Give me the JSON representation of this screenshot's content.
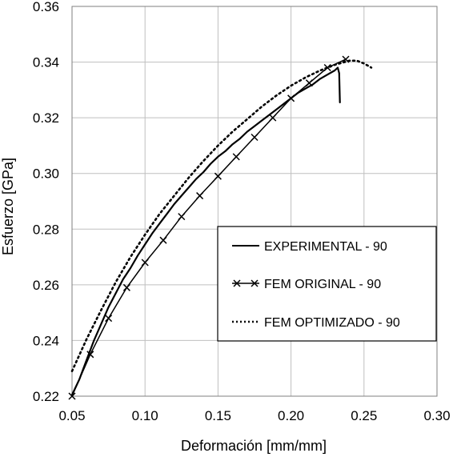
{
  "chart_data": {
    "type": "line",
    "title": "",
    "xlabel": "Deformación [mm/mm]",
    "ylabel": "Esfuerzo [GPa]",
    "xlim": [
      0.05,
      0.3
    ],
    "ylim": [
      0.22,
      0.36
    ],
    "xticks": [
      "0.05",
      "0.10",
      "0.15",
      "0.20",
      "0.25",
      "0.30"
    ],
    "yticks": [
      "0.22",
      "0.24",
      "0.26",
      "0.28",
      "0.30",
      "0.32",
      "0.34",
      "0.36"
    ],
    "grid": true,
    "legend_position": "center-right",
    "series": [
      {
        "name": "EXPERIMENTAL - 90",
        "style": "solid",
        "color": "#000000",
        "x": [
          0.05,
          0.055,
          0.06,
          0.065,
          0.07,
          0.075,
          0.08,
          0.085,
          0.09,
          0.095,
          0.1,
          0.105,
          0.11,
          0.115,
          0.12,
          0.125,
          0.13,
          0.135,
          0.14,
          0.145,
          0.15,
          0.155,
          0.16,
          0.165,
          0.17,
          0.175,
          0.18,
          0.185,
          0.19,
          0.195,
          0.2,
          0.205,
          0.21,
          0.215,
          0.22,
          0.225,
          0.23,
          0.232,
          0.233,
          0.2335
        ],
        "y": [
          0.2205,
          0.226,
          0.233,
          0.24,
          0.246,
          0.252,
          0.257,
          0.262,
          0.266,
          0.2705,
          0.2745,
          0.2785,
          0.282,
          0.2855,
          0.289,
          0.292,
          0.295,
          0.298,
          0.3005,
          0.3035,
          0.306,
          0.308,
          0.3105,
          0.3125,
          0.315,
          0.317,
          0.319,
          0.321,
          0.323,
          0.325,
          0.327,
          0.329,
          0.3305,
          0.332,
          0.334,
          0.3355,
          0.337,
          0.338,
          0.336,
          0.3255
        ]
      },
      {
        "name": "FEM ORIGINAL - 90",
        "style": "solid-x-marker",
        "color": "#000000",
        "x": [
          0.05,
          0.0625,
          0.075,
          0.0875,
          0.1,
          0.1125,
          0.125,
          0.1375,
          0.15,
          0.1625,
          0.175,
          0.1875,
          0.2,
          0.2125,
          0.225,
          0.2375
        ],
        "y": [
          0.22,
          0.235,
          0.248,
          0.259,
          0.268,
          0.276,
          0.2845,
          0.292,
          0.299,
          0.306,
          0.313,
          0.32,
          0.327,
          0.3325,
          0.338,
          0.341
        ]
      },
      {
        "name": "FEM OPTIMIZADO - 90",
        "style": "dotted",
        "color": "#000000",
        "x": [
          0.05,
          0.06,
          0.07,
          0.08,
          0.09,
          0.1,
          0.11,
          0.12,
          0.13,
          0.14,
          0.15,
          0.16,
          0.17,
          0.18,
          0.19,
          0.2,
          0.21,
          0.22,
          0.23,
          0.24,
          0.245,
          0.25,
          0.255
        ],
        "y": [
          0.229,
          0.2405,
          0.251,
          0.261,
          0.27,
          0.278,
          0.2855,
          0.292,
          0.2985,
          0.3045,
          0.31,
          0.315,
          0.3195,
          0.324,
          0.328,
          0.3315,
          0.3345,
          0.337,
          0.339,
          0.3405,
          0.3405,
          0.3395,
          0.338
        ]
      }
    ]
  }
}
